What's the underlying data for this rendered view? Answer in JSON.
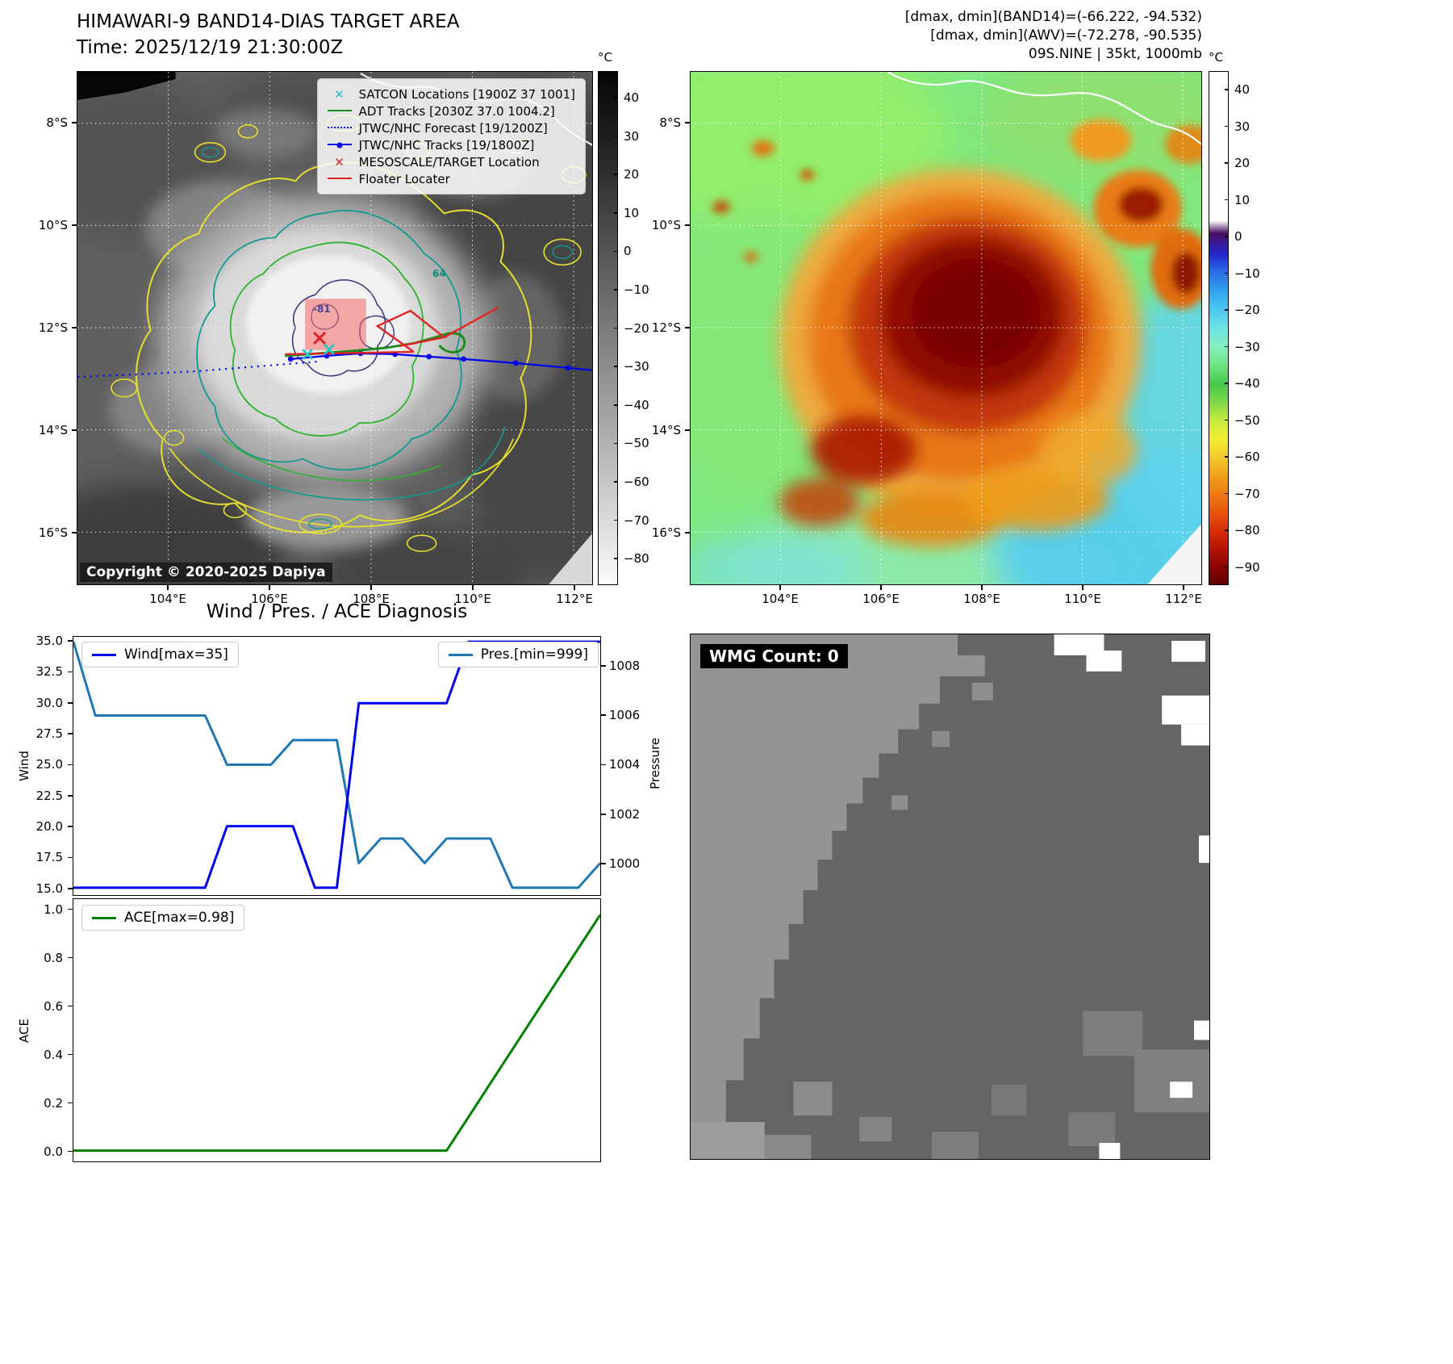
{
  "panel_band14": {
    "title": "HIMAWARI-9 BAND14-DIAS TARGET AREA",
    "subtitle": "Time: 2025/12/19 21:30:00Z",
    "copyright": "Copyright © 2020-2025 Dapiya",
    "legend": [
      {
        "label": "SATCON Locations [1900Z 37 1001]",
        "marker": "x",
        "color": "#1ec8c8"
      },
      {
        "label": "ADT Tracks [2030Z 37.0 1004.2]",
        "marker": "line",
        "color": "#1c8c1c"
      },
      {
        "label": "JTWC/NHC Forecast [19/1200Z]",
        "marker": "dotted-line",
        "color": "#0000ee"
      },
      {
        "label": "JTWC/NHC Tracks [19/1800Z]",
        "marker": "line-dot",
        "color": "#0000ee"
      },
      {
        "label": "MESOSCALE/TARGET Location",
        "marker": "x",
        "color": "#e02424"
      },
      {
        "label": "Floater Locater",
        "marker": "line",
        "color": "#e02424"
      }
    ],
    "x_ticks": [
      "104°E",
      "106°E",
      "108°E",
      "110°E",
      "112°E"
    ],
    "y_ticks": [
      "8°S",
      "10°S",
      "12°S",
      "14°S",
      "16°S"
    ],
    "colorbar": {
      "unit": "°C",
      "ticks": [
        "40",
        "30",
        "20",
        "10",
        "0",
        "−10",
        "−20",
        "−30",
        "−40",
        "−50",
        "−60",
        "−70",
        "−80"
      ]
    },
    "contour_labels": {
      "outer": "64",
      "inner": "-81"
    }
  },
  "panel_awv": {
    "annotation_line1": "[dmax, dmin](BAND14)=(-66.222, -94.532)",
    "annotation_line2": "[dmax, dmin](AWV)=(-72.278, -90.535)",
    "annotation_line3": "09S.NINE | 35kt, 1000mb",
    "x_ticks": [
      "104°E",
      "106°E",
      "108°E",
      "110°E",
      "112°E"
    ],
    "y_ticks": [
      "8°S",
      "10°S",
      "12°S",
      "14°S",
      "16°S"
    ],
    "colorbar": {
      "unit": "°C",
      "ticks": [
        "40",
        "30",
        "20",
        "10",
        "0",
        "−10",
        "−20",
        "−30",
        "−40",
        "−50",
        "−60",
        "−70",
        "−80",
        "−90"
      ]
    }
  },
  "wmg": {
    "label": "WMG Count: 0"
  },
  "chart_data": [
    {
      "type": "line",
      "title": "Wind / Pres. / ACE Diagnosis",
      "x": [
        0,
        1,
        2,
        3,
        4,
        5,
        6,
        7,
        8,
        9,
        10,
        11,
        12,
        13,
        14,
        15,
        16,
        17,
        18,
        19,
        20,
        21,
        22,
        23,
        24
      ],
      "series": [
        {
          "name": "Wind[max=35]",
          "axis": "left",
          "color": "#0000ee",
          "values": [
            15,
            15,
            15,
            15,
            15,
            15,
            15,
            20,
            20,
            20,
            20,
            15,
            15,
            30,
            30,
            30,
            30,
            30,
            35,
            35,
            35,
            35,
            35,
            35,
            35
          ]
        },
        {
          "name": "Pres.[min=999]",
          "axis": "right",
          "color": "#1f77b4",
          "values": [
            1009,
            1006,
            1006,
            1006,
            1006,
            1006,
            1006,
            1004,
            1004,
            1004,
            1005,
            1005,
            1005,
            1000,
            1001,
            1001,
            1000,
            1001,
            1001,
            1001,
            999,
            999,
            999,
            999,
            1000
          ]
        }
      ],
      "ylabel_left": "Wind",
      "ylabel_right": "Pressure",
      "ylim_left": [
        14.4,
        35.4
      ],
      "ylim_right": [
        998.7,
        1009.2
      ],
      "yticks_left": [
        15.0,
        17.5,
        20.0,
        22.5,
        25.0,
        27.5,
        30.0,
        32.5,
        35.0
      ],
      "yticks_right": [
        1000,
        1002,
        1004,
        1006,
        1008
      ],
      "grid": false,
      "legend_positions": [
        "upper left",
        "upper right"
      ]
    },
    {
      "type": "line",
      "x": [
        0,
        1,
        2,
        3,
        4,
        5,
        6,
        7,
        8,
        9,
        10,
        11,
        12,
        13,
        14,
        15,
        16,
        17,
        18,
        19,
        20,
        21,
        22,
        23,
        24
      ],
      "series": [
        {
          "name": "ACE[max=0.98]",
          "color": "#008000",
          "values": [
            0,
            0,
            0,
            0,
            0,
            0,
            0,
            0,
            0,
            0,
            0,
            0,
            0,
            0,
            0,
            0,
            0,
            0,
            0.14,
            0.28,
            0.42,
            0.56,
            0.7,
            0.84,
            0.98
          ]
        }
      ],
      "ylabel": "ACE",
      "ylim": [
        -0.045,
        1.045
      ],
      "yticks": [
        0.0,
        0.2,
        0.4,
        0.6,
        0.8,
        1.0
      ],
      "grid": false,
      "legend_position": "upper left"
    }
  ]
}
